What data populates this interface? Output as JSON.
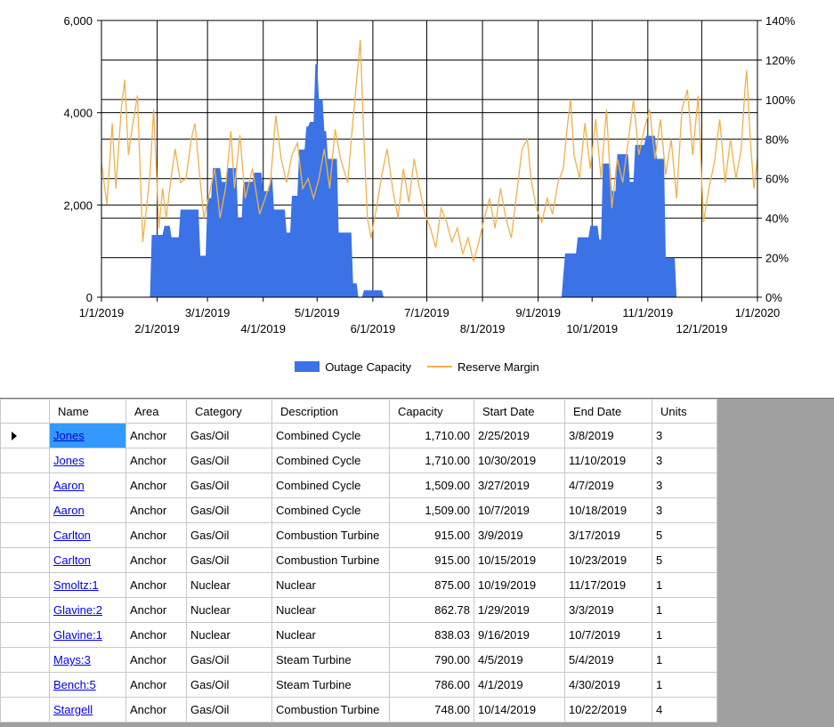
{
  "chart_data": {
    "type": "area+line",
    "x_ticks_upper": [
      "1/1/2019",
      "3/1/2019",
      "5/1/2019",
      "7/1/2019",
      "9/1/2019",
      "11/1/2019",
      "1/1/2020"
    ],
    "x_ticks_lower": [
      "2/1/2019",
      "4/1/2019",
      "6/1/2019",
      "8/1/2019",
      "10/1/2019",
      "12/1/2019"
    ],
    "y_left_ticks": [
      "0",
      "2,000",
      "4,000",
      "6,000"
    ],
    "y_right_ticks": [
      "0%",
      "20%",
      "40%",
      "60%",
      "80%",
      "100%",
      "120%",
      "140%"
    ],
    "y_left_range": [
      0,
      6000
    ],
    "y_right_range": [
      0,
      1.4
    ],
    "x_range": [
      "2019-01-01",
      "2020-01-01"
    ],
    "grid": true,
    "legend_position": "bottom",
    "series": [
      {
        "name": "Outage Capacity",
        "kind": "area",
        "axis": "left",
        "color": "#3b73e6",
        "points": [
          [
            "2019-01-01",
            0
          ],
          [
            "2019-01-27",
            0
          ],
          [
            "2019-01-28",
            0
          ],
          [
            "2019-01-29",
            1350
          ],
          [
            "2019-02-04",
            1350
          ],
          [
            "2019-02-05",
            1550
          ],
          [
            "2019-02-08",
            1550
          ],
          [
            "2019-02-09",
            1300
          ],
          [
            "2019-02-13",
            1300
          ],
          [
            "2019-02-14",
            1900
          ],
          [
            "2019-02-24",
            1900
          ],
          [
            "2019-02-25",
            900
          ],
          [
            "2019-02-28",
            900
          ],
          [
            "2019-03-01",
            2150
          ],
          [
            "2019-03-03",
            2150
          ],
          [
            "2019-03-04",
            2800
          ],
          [
            "2019-03-08",
            2800
          ],
          [
            "2019-03-09",
            2500
          ],
          [
            "2019-03-11",
            2500
          ],
          [
            "2019-03-12",
            2800
          ],
          [
            "2019-03-17",
            2800
          ],
          [
            "2019-03-18",
            1700
          ],
          [
            "2019-03-20",
            1700
          ],
          [
            "2019-03-21",
            2500
          ],
          [
            "2019-03-26",
            2500
          ],
          [
            "2019-03-27",
            2700
          ],
          [
            "2019-03-31",
            2700
          ],
          [
            "2019-04-01",
            2300
          ],
          [
            "2019-04-04",
            2300
          ],
          [
            "2019-04-05",
            2600
          ],
          [
            "2019-04-06",
            2600
          ],
          [
            "2019-04-07",
            1900
          ],
          [
            "2019-04-13",
            1900
          ],
          [
            "2019-04-14",
            1400
          ],
          [
            "2019-04-16",
            1400
          ],
          [
            "2019-04-17",
            2200
          ],
          [
            "2019-04-20",
            2200
          ],
          [
            "2019-04-21",
            3200
          ],
          [
            "2019-04-24",
            3200
          ],
          [
            "2019-04-25",
            3700
          ],
          [
            "2019-04-26",
            3700
          ],
          [
            "2019-04-27",
            3800
          ],
          [
            "2019-04-29",
            3800
          ],
          [
            "2019-04-30",
            5050
          ],
          [
            "2019-05-01",
            5050
          ],
          [
            "2019-05-02",
            4300
          ],
          [
            "2019-05-04",
            4300
          ],
          [
            "2019-05-05",
            3600
          ],
          [
            "2019-05-06",
            3600
          ],
          [
            "2019-05-07",
            3000
          ],
          [
            "2019-05-12",
            3000
          ],
          [
            "2019-05-13",
            1400
          ],
          [
            "2019-05-20",
            1400
          ],
          [
            "2019-05-21",
            300
          ],
          [
            "2019-05-23",
            300
          ],
          [
            "2019-05-24",
            0
          ],
          [
            "2019-05-26",
            0
          ],
          [
            "2019-05-27",
            150
          ],
          [
            "2019-06-06",
            150
          ],
          [
            "2019-06-07",
            0
          ],
          [
            "2019-09-14",
            0
          ],
          [
            "2019-09-16",
            950
          ],
          [
            "2019-09-22",
            950
          ],
          [
            "2019-09-23",
            1300
          ],
          [
            "2019-09-29",
            1300
          ],
          [
            "2019-09-30",
            1550
          ],
          [
            "2019-10-04",
            1550
          ],
          [
            "2019-10-05",
            1250
          ],
          [
            "2019-10-06",
            1250
          ],
          [
            "2019-10-07",
            2900
          ],
          [
            "2019-10-11",
            2900
          ],
          [
            "2019-10-12",
            2300
          ],
          [
            "2019-10-14",
            2300
          ],
          [
            "2019-10-15",
            3100
          ],
          [
            "2019-10-21",
            3100
          ],
          [
            "2019-10-22",
            2500
          ],
          [
            "2019-10-24",
            2500
          ],
          [
            "2019-10-25",
            3300
          ],
          [
            "2019-10-30",
            3300
          ],
          [
            "2019-10-31",
            3500
          ],
          [
            "2019-11-05",
            3500
          ],
          [
            "2019-11-06",
            3000
          ],
          [
            "2019-11-10",
            3000
          ],
          [
            "2019-11-11",
            850
          ],
          [
            "2019-11-16",
            850
          ],
          [
            "2019-11-17",
            0
          ],
          [
            "2020-01-01",
            0
          ]
        ]
      },
      {
        "name": "Reserve Margin",
        "kind": "line",
        "axis": "right",
        "color": "#f0b14a",
        "points": [
          [
            "2019-01-01",
            0.68
          ],
          [
            "2019-01-04",
            0.47
          ],
          [
            "2019-01-07",
            0.88
          ],
          [
            "2019-01-09",
            0.55
          ],
          [
            "2019-01-12",
            0.95
          ],
          [
            "2019-01-14",
            1.1
          ],
          [
            "2019-01-16",
            0.72
          ],
          [
            "2019-01-18",
            0.85
          ],
          [
            "2019-01-21",
            1.02
          ],
          [
            "2019-01-24",
            0.28
          ],
          [
            "2019-01-26",
            0.45
          ],
          [
            "2019-01-28",
            0.62
          ],
          [
            "2019-01-30",
            0.95
          ],
          [
            "2019-02-02",
            0.35
          ],
          [
            "2019-02-04",
            0.55
          ],
          [
            "2019-02-06",
            0.4
          ],
          [
            "2019-02-09",
            0.62
          ],
          [
            "2019-02-11",
            0.75
          ],
          [
            "2019-02-14",
            0.58
          ],
          [
            "2019-02-17",
            0.6
          ],
          [
            "2019-02-20",
            0.8
          ],
          [
            "2019-02-22",
            0.88
          ],
          [
            "2019-02-25",
            0.58
          ],
          [
            "2019-02-27",
            0.4
          ],
          [
            "2019-03-02",
            0.52
          ],
          [
            "2019-03-05",
            0.65
          ],
          [
            "2019-03-08",
            0.4
          ],
          [
            "2019-03-11",
            0.55
          ],
          [
            "2019-03-14",
            0.84
          ],
          [
            "2019-03-16",
            0.55
          ],
          [
            "2019-03-19",
            0.82
          ],
          [
            "2019-03-22",
            0.5
          ],
          [
            "2019-03-26",
            0.65
          ],
          [
            "2019-03-30",
            0.42
          ],
          [
            "2019-04-02",
            0.5
          ],
          [
            "2019-04-05",
            0.58
          ],
          [
            "2019-04-08",
            0.92
          ],
          [
            "2019-04-11",
            0.7
          ],
          [
            "2019-04-14",
            0.58
          ],
          [
            "2019-04-17",
            0.72
          ],
          [
            "2019-04-20",
            0.78
          ],
          [
            "2019-04-23",
            0.55
          ],
          [
            "2019-04-26",
            0.6
          ],
          [
            "2019-04-29",
            0.5
          ],
          [
            "2019-05-02",
            0.6
          ],
          [
            "2019-05-05",
            0.75
          ],
          [
            "2019-05-08",
            0.55
          ],
          [
            "2019-05-11",
            0.85
          ],
          [
            "2019-05-14",
            0.7
          ],
          [
            "2019-05-18",
            0.58
          ],
          [
            "2019-05-21",
            0.9
          ],
          [
            "2019-05-23",
            1.1
          ],
          [
            "2019-05-25",
            1.3
          ],
          [
            "2019-05-27",
            0.8
          ],
          [
            "2019-05-29",
            0.4
          ],
          [
            "2019-05-31",
            0.3
          ],
          [
            "2019-06-03",
            0.45
          ],
          [
            "2019-06-06",
            0.62
          ],
          [
            "2019-06-09",
            0.75
          ],
          [
            "2019-06-12",
            0.55
          ],
          [
            "2019-06-15",
            0.4
          ],
          [
            "2019-06-18",
            0.65
          ],
          [
            "2019-06-21",
            0.48
          ],
          [
            "2019-06-24",
            0.7
          ],
          [
            "2019-06-27",
            0.55
          ],
          [
            "2019-06-30",
            0.42
          ],
          [
            "2019-07-03",
            0.35
          ],
          [
            "2019-07-06",
            0.25
          ],
          [
            "2019-07-09",
            0.45
          ],
          [
            "2019-07-12",
            0.38
          ],
          [
            "2019-07-15",
            0.28
          ],
          [
            "2019-07-18",
            0.35
          ],
          [
            "2019-07-21",
            0.22
          ],
          [
            "2019-07-24",
            0.3
          ],
          [
            "2019-07-27",
            0.18
          ],
          [
            "2019-07-30",
            0.28
          ],
          [
            "2019-08-02",
            0.4
          ],
          [
            "2019-08-05",
            0.5
          ],
          [
            "2019-08-08",
            0.35
          ],
          [
            "2019-08-11",
            0.55
          ],
          [
            "2019-08-14",
            0.4
          ],
          [
            "2019-08-17",
            0.3
          ],
          [
            "2019-08-20",
            0.52
          ],
          [
            "2019-08-23",
            0.75
          ],
          [
            "2019-08-26",
            0.8
          ],
          [
            "2019-08-28",
            0.6
          ],
          [
            "2019-08-31",
            0.45
          ],
          [
            "2019-09-03",
            0.38
          ],
          [
            "2019-09-06",
            0.5
          ],
          [
            "2019-09-09",
            0.42
          ],
          [
            "2019-09-12",
            0.58
          ],
          [
            "2019-09-15",
            0.65
          ],
          [
            "2019-09-17",
            0.85
          ],
          [
            "2019-09-19",
            1.0
          ],
          [
            "2019-09-21",
            0.72
          ],
          [
            "2019-09-24",
            0.6
          ],
          [
            "2019-09-27",
            0.88
          ],
          [
            "2019-09-30",
            0.65
          ],
          [
            "2019-10-03",
            0.9
          ],
          [
            "2019-10-06",
            0.6
          ],
          [
            "2019-10-09",
            0.95
          ],
          [
            "2019-10-12",
            0.45
          ],
          [
            "2019-10-15",
            0.7
          ],
          [
            "2019-10-18",
            0.58
          ],
          [
            "2019-10-21",
            0.78
          ],
          [
            "2019-10-24",
            1.0
          ],
          [
            "2019-10-27",
            0.72
          ],
          [
            "2019-10-30",
            0.85
          ],
          [
            "2019-11-02",
            0.95
          ],
          [
            "2019-11-05",
            0.7
          ],
          [
            "2019-11-08",
            0.9
          ],
          [
            "2019-11-11",
            0.62
          ],
          [
            "2019-11-14",
            0.8
          ],
          [
            "2019-11-17",
            0.5
          ],
          [
            "2019-11-20",
            0.95
          ],
          [
            "2019-11-23",
            1.05
          ],
          [
            "2019-11-26",
            0.72
          ],
          [
            "2019-11-29",
            1.02
          ],
          [
            "2019-12-02",
            0.38
          ],
          [
            "2019-12-05",
            0.55
          ],
          [
            "2019-12-08",
            0.68
          ],
          [
            "2019-12-11",
            0.9
          ],
          [
            "2019-12-14",
            0.58
          ],
          [
            "2019-12-17",
            0.8
          ],
          [
            "2019-12-20",
            0.6
          ],
          [
            "2019-12-23",
            0.75
          ],
          [
            "2019-12-25",
            1.05
          ],
          [
            "2019-12-26",
            1.15
          ],
          [
            "2019-12-28",
            0.8
          ],
          [
            "2019-12-30",
            0.55
          ],
          [
            "2020-01-01",
            0.7
          ]
        ]
      }
    ]
  },
  "legend": {
    "items": [
      {
        "label": "Outage Capacity"
      },
      {
        "label": "Reserve Margin"
      }
    ]
  },
  "table": {
    "columns": [
      "Name",
      "Area",
      "Category",
      "Description",
      "Capacity",
      "Start Date",
      "End Date",
      "Units"
    ],
    "rows": [
      [
        "Jones",
        "Anchor",
        "Gas/Oil",
        "Combined Cycle",
        "1,710.00",
        "2/25/2019",
        "3/8/2019",
        "3"
      ],
      [
        "Jones",
        "Anchor",
        "Gas/Oil",
        "Combined Cycle",
        "1,710.00",
        "10/30/2019",
        "11/10/2019",
        "3"
      ],
      [
        "Aaron",
        "Anchor",
        "Gas/Oil",
        "Combined Cycle",
        "1,509.00",
        "3/27/2019",
        "4/7/2019",
        "3"
      ],
      [
        "Aaron",
        "Anchor",
        "Gas/Oil",
        "Combined Cycle",
        "1,509.00",
        "10/7/2019",
        "10/18/2019",
        "3"
      ],
      [
        "Carlton",
        "Anchor",
        "Gas/Oil",
        "Combustion Turbine",
        "915.00",
        "3/9/2019",
        "3/17/2019",
        "5"
      ],
      [
        "Carlton",
        "Anchor",
        "Gas/Oil",
        "Combustion Turbine",
        "915.00",
        "10/15/2019",
        "10/23/2019",
        "5"
      ],
      [
        "Smoltz:1",
        "Anchor",
        "Nuclear",
        "Nuclear",
        "875.00",
        "10/19/2019",
        "11/17/2019",
        "1"
      ],
      [
        "Glavine:2",
        "Anchor",
        "Nuclear",
        "Nuclear",
        "862.78",
        "1/29/2019",
        "3/3/2019",
        "1"
      ],
      [
        "Glavine:1",
        "Anchor",
        "Nuclear",
        "Nuclear",
        "838.03",
        "9/16/2019",
        "10/7/2019",
        "1"
      ],
      [
        "Mays:3",
        "Anchor",
        "Gas/Oil",
        "Steam Turbine",
        "790.00",
        "4/5/2019",
        "5/4/2019",
        "1"
      ],
      [
        "Bench:5",
        "Anchor",
        "Gas/Oil",
        "Steam Turbine",
        "786.00",
        "4/1/2019",
        "4/30/2019",
        "1"
      ],
      [
        "Stargell",
        "Anchor",
        "Gas/Oil",
        "Combustion Turbine",
        "748.00",
        "10/14/2019",
        "10/22/2019",
        "4"
      ]
    ],
    "selected_row": 0,
    "row_indicator_icon": "row-pointer-arrow-icon"
  }
}
